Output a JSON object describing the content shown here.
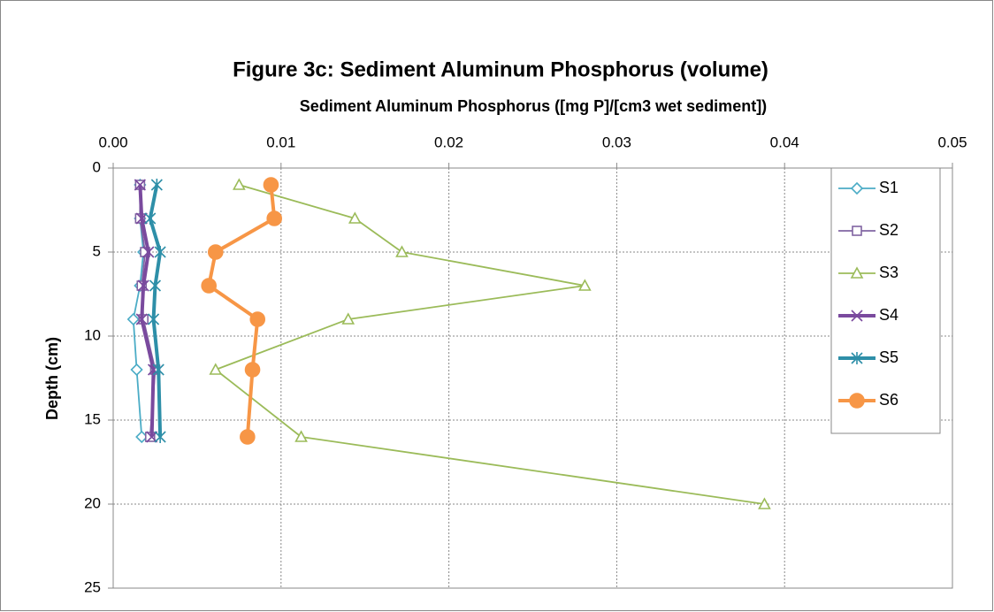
{
  "chart_data": {
    "type": "line",
    "title": "Figure 3c: Sediment Aluminum Phosphorus (volume)",
    "x_label": "Sediment Aluminum Phosphorus ([mg P]/[cm3 wet sediment])",
    "y_label": "Depth (cm)",
    "y": [
      1,
      3,
      5,
      7,
      9,
      12,
      16,
      20
    ],
    "xlim": [
      0,
      0.05
    ],
    "xticks": [
      {
        "value": 0,
        "label": "0.00"
      },
      {
        "value": 0.01,
        "label": "0.01"
      },
      {
        "value": 0.02,
        "label": "0.02"
      },
      {
        "value": 0.03,
        "label": "0.03"
      },
      {
        "value": 0.04,
        "label": "0.04"
      },
      {
        "value": 0.05,
        "label": "0.05"
      }
    ],
    "ylim": [
      0,
      25
    ],
    "yticks": [
      0,
      5,
      10,
      15,
      20,
      25
    ],
    "y_inverted": true,
    "x_axis_position": "top",
    "grid": true,
    "legend": "right",
    "series": [
      {
        "name": "S1",
        "color": "#4bacc6",
        "marker": "diamond",
        "values": [
          0.0016,
          0.0016,
          0.0018,
          0.0016,
          0.0012,
          0.0014,
          0.0017,
          null
        ]
      },
      {
        "name": "S2",
        "color": "#8064a2",
        "marker": "square",
        "values": [
          0.0016,
          0.0016,
          0.0019,
          0.0017,
          0.0018,
          0.0025,
          0.0022,
          null
        ]
      },
      {
        "name": "S3",
        "color": "#9bbb59",
        "marker": "triangle",
        "values": [
          0.0075,
          0.0144,
          0.0172,
          0.0281,
          0.014,
          0.0061,
          0.0112,
          0.0388
        ]
      },
      {
        "name": "S4",
        "color": "#7a4a9e",
        "marker": "x",
        "values": [
          0.0016,
          0.0017,
          0.0021,
          0.0018,
          0.0017,
          0.0024,
          0.0023,
          null
        ]
      },
      {
        "name": "S5",
        "color": "#2e8fa8",
        "marker": "star",
        "values": [
          0.0026,
          0.0022,
          0.0028,
          0.0025,
          0.0024,
          0.0027,
          0.0028,
          null
        ]
      },
      {
        "name": "S6",
        "color": "#f79646",
        "marker": "circle",
        "values": [
          0.0094,
          0.0096,
          0.0061,
          0.0057,
          0.0086,
          0.0083,
          0.008,
          null
        ]
      }
    ]
  }
}
